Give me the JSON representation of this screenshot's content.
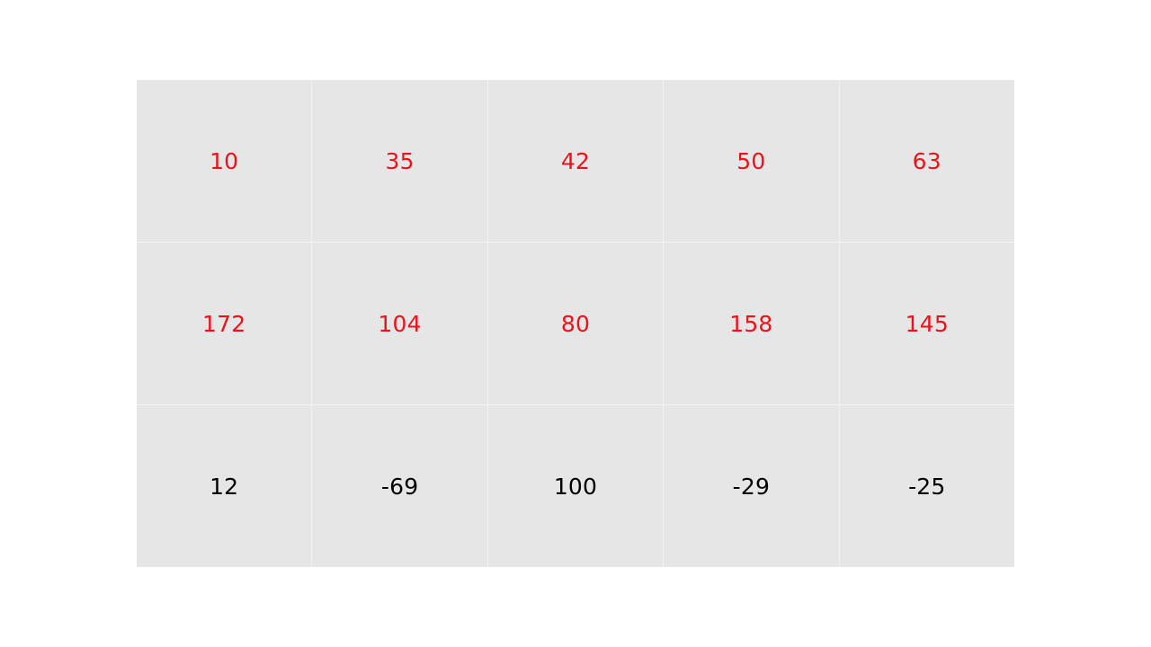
{
  "colors": {
    "highlight_text": "#e8141b",
    "normal_text": "#000000",
    "cell_background": "#e6e6e6",
    "gridline": "#f4f4f4"
  },
  "grid": {
    "rows": [
      {
        "style": "highlight",
        "cells": [
          "10",
          "35",
          "42",
          "50",
          "63"
        ]
      },
      {
        "style": "highlight",
        "cells": [
          "172",
          "104",
          "80",
          "158",
          "145"
        ]
      },
      {
        "style": "normal",
        "cells": [
          "12",
          "-69",
          "100",
          "-29",
          "-25"
        ]
      }
    ]
  }
}
